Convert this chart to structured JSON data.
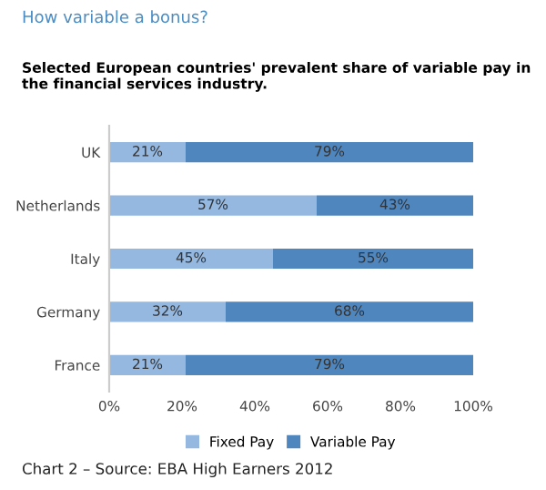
{
  "chart_data": {
    "type": "bar",
    "orientation": "horizontal",
    "stacked": true,
    "title": "How variable a bonus?",
    "subtitle": "Selected European countries' prevalent share of variable pay in the financial services industry.",
    "categories": [
      "UK",
      "Netherlands",
      "Italy",
      "Germany",
      "France"
    ],
    "series": [
      {
        "name": "Fixed Pay",
        "color": "#95b8e0",
        "values": [
          21,
          57,
          45,
          32,
          21
        ],
        "value_labels": [
          "21%",
          "57%",
          "45%",
          "32%",
          "21%"
        ]
      },
      {
        "name": "Variable Pay",
        "color": "#4f86be",
        "values": [
          79,
          43,
          55,
          68,
          79
        ],
        "value_labels": [
          "79%",
          "43%",
          "55%",
          "68%",
          "79%"
        ]
      }
    ],
    "xlim": [
      0,
      100
    ],
    "xticks": [
      {
        "value": 0,
        "label": "0%"
      },
      {
        "value": 20,
        "label": "20%"
      },
      {
        "value": 40,
        "label": "40%"
      },
      {
        "value": 60,
        "label": "60%"
      },
      {
        "value": 80,
        "label": "80%"
      },
      {
        "value": 100,
        "label": "100%"
      }
    ],
    "grid": false,
    "legend": "bottom",
    "annotations": [
      "Chart 2 – Source: EBA High Earners 2012"
    ]
  }
}
